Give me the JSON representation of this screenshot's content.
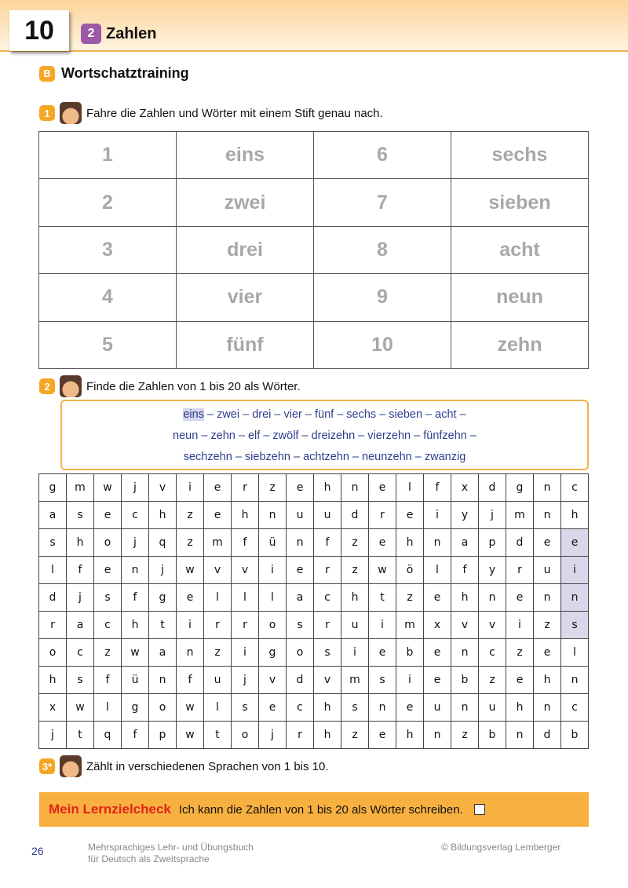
{
  "header": {
    "page_chapter_number": "10",
    "chapter_badge": "2",
    "chapter_title": "Zahlen",
    "accent": "#f5a623",
    "chapter_color": "#9b59a8"
  },
  "section": {
    "badge": "B",
    "title": "Wortschatztraining"
  },
  "task1": {
    "badge": "1",
    "icon": "child-face-icon",
    "text": "Fahre die Zahlen und Wörter mit einem Stift genau nach.",
    "rows": [
      [
        "1",
        "eins",
        "6",
        "sechs"
      ],
      [
        "2",
        "zwei",
        "7",
        "sieben"
      ],
      [
        "3",
        "drei",
        "8",
        "acht"
      ],
      [
        "4",
        "vier",
        "9",
        "neun"
      ],
      [
        "5",
        "fünf",
        "10",
        "zehn"
      ]
    ]
  },
  "task2": {
    "badge": "2",
    "icon": "child-face-icon",
    "text": "Finde die Zahlen von 1 bis 20 als Wörter.",
    "highlighted_word": "eins",
    "line1_rest": " – zwei – drei – vier – fünf – sechs – sieben – acht –",
    "line2": "neun – zehn – elf – zwölf – dreizehn – vierzehn – fünfzehn –",
    "line3": "sechzehn – siebzehn – achtzehn – neunzehn – zwanzig",
    "grid": [
      "gmwjvierzehnelfxdgnc",
      "asechzehnuudreiyjmnh",
      "shojqzmfünfzehnapdee",
      "lfenjwvvierzwölfyrui",
      "djsfgelllachtzehnenn",
      "rachtirrosruimxvvizs",
      "oczwanzigosiebenczel",
      "hsfünfujvdvmsiebzehn",
      "xwlgowlsechsneunuhnc",
      "jtqfpwtojrhzehnzbndb"
    ],
    "found_cells": [
      [
        2,
        19
      ],
      [
        3,
        19
      ],
      [
        4,
        19
      ],
      [
        5,
        19
      ]
    ]
  },
  "task3": {
    "badge": "3*",
    "icon": "two-children-icon",
    "text": "Zählt in verschiedenen Sprachen von 1 bis 10."
  },
  "check": {
    "title": "Mein Lernzielcheck",
    "text": "Ich kann die Zahlen von 1 bis 20 als Wörter schreiben."
  },
  "footer": {
    "page": "26",
    "book_line1": "Mehrsprachiges Lehr- und Übungsbuch",
    "book_line2": "für Deutsch als Zweitsprache",
    "copyright": "© Bildungsverlag Lemberger"
  }
}
